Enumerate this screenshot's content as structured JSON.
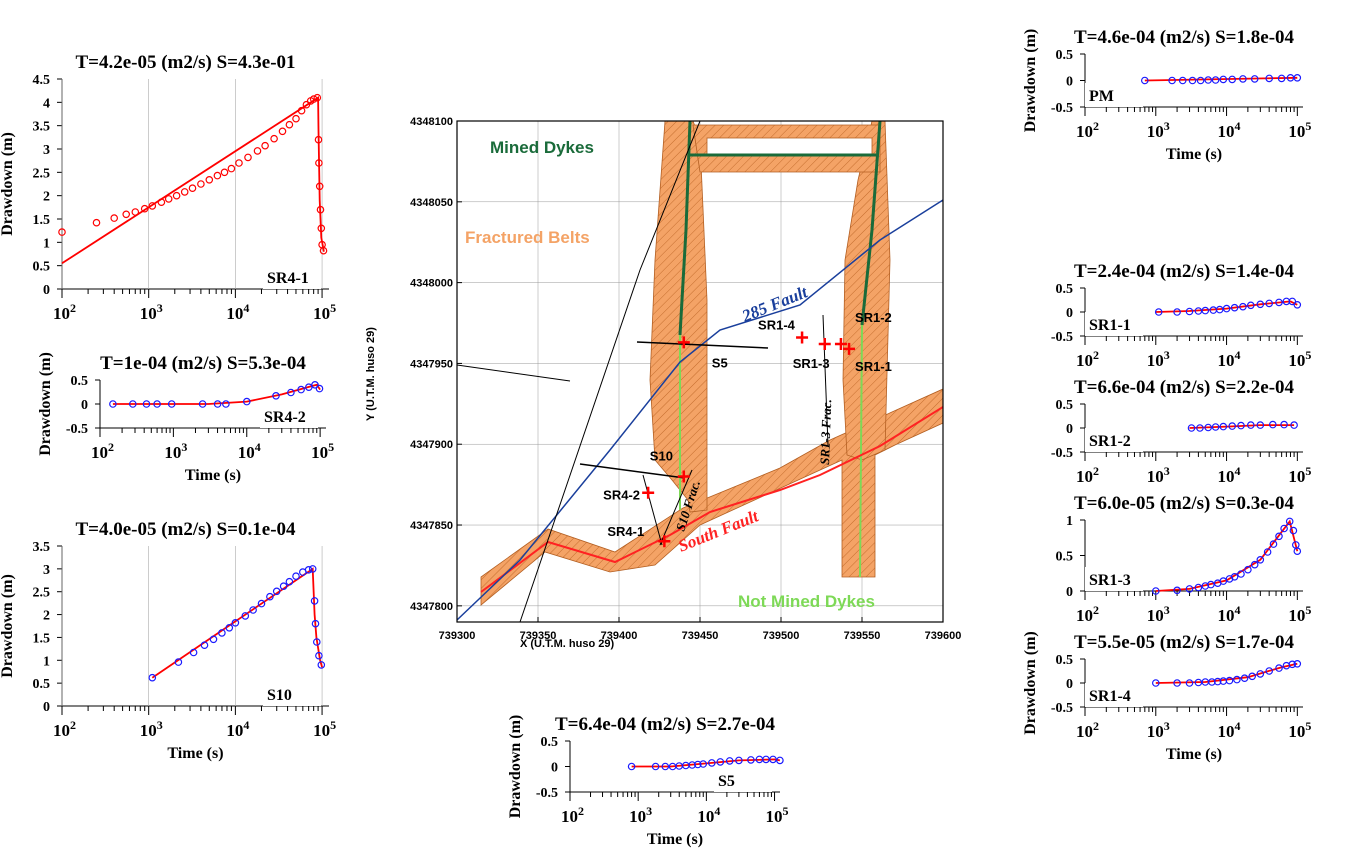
{
  "map": {
    "xlabel": "X (U.T.M. huso 29)",
    "ylabel": "Y (U.T.M. huso 29)",
    "xlim": [
      739300,
      739600
    ],
    "ylim": [
      4347790,
      4348100
    ],
    "xticks": [
      "739300",
      "739350",
      "739400",
      "739450",
      "739500",
      "739550",
      "739600"
    ],
    "yticks": [
      "4347800",
      "4347850",
      "4347900",
      "4347950",
      "4348000",
      "4348050",
      "4348100"
    ],
    "labels": {
      "mined": "Mined Dykes",
      "fractured": "Fractured Belts",
      "fault285": "285 Fault",
      "south": "South Fault",
      "notmined": "Not Mined Dykes",
      "s10frac": "S10 Frac.",
      "sr13frac": "SR1-3 Frac."
    },
    "colors": {
      "belt": "#f4a366",
      "mined": "#1a6b3a",
      "notmined": "#7ed957",
      "fault285": "#1a3f9c",
      "south": "#ff2222",
      "well": "#ff0000"
    },
    "wells": [
      {
        "name": "S5",
        "x": 739440,
        "y": 4347963
      },
      {
        "name": "SR1-4",
        "x": 739513,
        "y": 4347966
      },
      {
        "name": "SR1-3",
        "x": 739527,
        "y": 4347962
      },
      {
        "name": "SR1-2",
        "x": 739537,
        "y": 4347962
      },
      {
        "name": "SR1-1",
        "x": 739542,
        "y": 4347959
      },
      {
        "name": "S10",
        "x": 739440,
        "y": 4347880
      },
      {
        "name": "SR4-2",
        "x": 739418,
        "y": 4347870
      },
      {
        "name": "SR4-1",
        "x": 739428,
        "y": 4347840
      }
    ]
  },
  "chart_data": [
    {
      "type": "line",
      "well": "SR4-1",
      "title": "T=4.2e-05 (m2/s)  S=4.3e-01",
      "ylabel": "Drawdown (m)",
      "ylim": [
        0,
        4.5
      ],
      "yticks": [
        "0",
        "0.5",
        "1",
        "1.5",
        "2",
        "2.5",
        "3",
        "3.5",
        "4",
        "4.5"
      ],
      "observed_style": "red-circles",
      "observed": [
        [
          100,
          1.22
        ],
        [
          250,
          1.42
        ],
        [
          400,
          1.52
        ],
        [
          550,
          1.6
        ],
        [
          700,
          1.65
        ],
        [
          900,
          1.72
        ],
        [
          1100,
          1.78
        ],
        [
          1400,
          1.86
        ],
        [
          1700,
          1.93
        ],
        [
          2100,
          2.0
        ],
        [
          2600,
          2.08
        ],
        [
          3200,
          2.16
        ],
        [
          4000,
          2.25
        ],
        [
          5000,
          2.34
        ],
        [
          6200,
          2.43
        ],
        [
          7500,
          2.5
        ],
        [
          9000,
          2.58
        ],
        [
          11000,
          2.7
        ],
        [
          14000,
          2.82
        ],
        [
          18000,
          2.96
        ],
        [
          22000,
          3.07
        ],
        [
          28000,
          3.22
        ],
        [
          35000,
          3.38
        ],
        [
          42000,
          3.52
        ],
        [
          50000,
          3.65
        ],
        [
          58000,
          3.82
        ],
        [
          66000,
          3.95
        ],
        [
          74000,
          4.03
        ],
        [
          80000,
          4.07
        ],
        [
          88000,
          4.1
        ],
        [
          91000,
          3.2
        ],
        [
          92000,
          2.7
        ],
        [
          94000,
          2.2
        ],
        [
          96000,
          1.7
        ],
        [
          98000,
          1.3
        ],
        [
          100000,
          0.95
        ],
        [
          104000,
          0.82
        ]
      ],
      "model": [
        [
          100,
          0.55
        ],
        [
          90000,
          4.1
        ],
        [
          91000,
          3.4
        ],
        [
          94000,
          1.9
        ],
        [
          98000,
          1.1
        ],
        [
          105000,
          0.8
        ]
      ]
    },
    {
      "type": "line",
      "well": "SR4-2",
      "title": "T=1e-04 (m2/s)  S=5.3e-04",
      "ylabel": "Drawdown (m)",
      "xlabel": "Time (s)",
      "ylim": [
        -0.5,
        0.5
      ],
      "yticks": [
        "0.5",
        "0",
        "-0.5"
      ],
      "observed": [
        [
          150,
          0
        ],
        [
          280,
          0
        ],
        [
          430,
          0
        ],
        [
          600,
          0
        ],
        [
          950,
          0
        ],
        [
          2500,
          0
        ],
        [
          4000,
          0
        ],
        [
          5200,
          0
        ],
        [
          10000,
          0.05
        ],
        [
          25000,
          0.17
        ],
        [
          40000,
          0.24
        ],
        [
          55000,
          0.3
        ],
        [
          70000,
          0.35
        ],
        [
          85000,
          0.4
        ],
        [
          98000,
          0.32
        ]
      ],
      "model": [
        [
          150,
          0
        ],
        [
          1000,
          0
        ],
        [
          3000,
          0
        ],
        [
          10000,
          0.05
        ],
        [
          30000,
          0.2
        ],
        [
          80000,
          0.38
        ],
        [
          90000,
          0.4
        ],
        [
          100000,
          0.3
        ]
      ]
    },
    {
      "type": "line",
      "well": "S10",
      "title": "T=4.0e-05 (m2/s)  S=0.1e-04",
      "ylabel": "Drawdown (m)",
      "xlabel": "Time (s)",
      "ylim": [
        0,
        3.5
      ],
      "yticks": [
        "0",
        "0.5",
        "1",
        "1.5",
        "2",
        "2.5",
        "3",
        "3.5"
      ],
      "observed": [
        [
          1100,
          0.62
        ],
        [
          2200,
          0.96
        ],
        [
          3300,
          1.17
        ],
        [
          4400,
          1.33
        ],
        [
          5600,
          1.46
        ],
        [
          7000,
          1.6
        ],
        [
          8500,
          1.71
        ],
        [
          10000,
          1.82
        ],
        [
          13000,
          1.97
        ],
        [
          16000,
          2.1
        ],
        [
          20000,
          2.24
        ],
        [
          25000,
          2.39
        ],
        [
          30000,
          2.51
        ],
        [
          36000,
          2.62
        ],
        [
          42000,
          2.72
        ],
        [
          50000,
          2.84
        ],
        [
          60000,
          2.93
        ],
        [
          70000,
          2.98
        ],
        [
          78000,
          3.0
        ],
        [
          82000,
          2.3
        ],
        [
          84000,
          1.8
        ],
        [
          87000,
          1.4
        ],
        [
          92000,
          1.1
        ],
        [
          98000,
          0.9
        ]
      ],
      "model": [
        [
          1100,
          0.62
        ],
        [
          78000,
          3.0
        ],
        [
          82000,
          2.0
        ],
        [
          86000,
          1.5
        ],
        [
          95000,
          1.0
        ],
        [
          100000,
          0.85
        ]
      ]
    },
    {
      "type": "line",
      "well": "S5",
      "title": "T=6.4e-04 (m2/s)  S=2.7e-04",
      "ylabel": "Drawdown (m)",
      "xlabel": "Time (s)",
      "ylim": [
        -0.5,
        0.5
      ],
      "yticks": [
        "0.5",
        "0",
        "-0.5"
      ],
      "observed": [
        [
          800,
          0
        ],
        [
          1800,
          0
        ],
        [
          2500,
          0
        ],
        [
          3200,
          0
        ],
        [
          4000,
          0.01
        ],
        [
          5000,
          0.02
        ],
        [
          6200,
          0.03
        ],
        [
          7500,
          0.04
        ],
        [
          9000,
          0.05
        ],
        [
          12000,
          0.07
        ],
        [
          16000,
          0.09
        ],
        [
          22000,
          0.11
        ],
        [
          30000,
          0.12
        ],
        [
          45000,
          0.13
        ],
        [
          60000,
          0.14
        ],
        [
          75000,
          0.14
        ],
        [
          95000,
          0.14
        ],
        [
          120000,
          0.12
        ]
      ],
      "model": [
        [
          800,
          0
        ],
        [
          3000,
          0
        ],
        [
          10000,
          0.06
        ],
        [
          30000,
          0.12
        ],
        [
          100000,
          0.14
        ],
        [
          120000,
          0.12
        ]
      ]
    },
    {
      "type": "line",
      "well": "PM",
      "title": "T=4.6e-04 (m2/s)  S=1.8e-04",
      "ylabel": "Drawdown (m)",
      "xlabel": "Time (s)",
      "ylim": [
        -0.5,
        0.5
      ],
      "yticks": [
        "0.5",
        "0",
        "-0.5"
      ],
      "observed": [
        [
          700,
          0
        ],
        [
          1700,
          0
        ],
        [
          2400,
          0
        ],
        [
          3300,
          0
        ],
        [
          4300,
          0
        ],
        [
          5500,
          0.01
        ],
        [
          7000,
          0.01
        ],
        [
          9000,
          0.02
        ],
        [
          12000,
          0.02
        ],
        [
          17000,
          0.03
        ],
        [
          25000,
          0.03
        ],
        [
          40000,
          0.04
        ],
        [
          60000,
          0.04
        ],
        [
          80000,
          0.05
        ],
        [
          100000,
          0.05
        ]
      ],
      "model": [
        [
          700,
          0
        ],
        [
          100000,
          0.05
        ]
      ]
    },
    {
      "type": "line",
      "well": "SR1-1",
      "title": "T=2.4e-04 (m2/s)  S=1.4e-04",
      "ylim": [
        -0.5,
        0.5
      ],
      "yticks": [
        "0.5",
        "0",
        "-0.5"
      ],
      "observed": [
        [
          1100,
          0
        ],
        [
          2000,
          0
        ],
        [
          3000,
          0.01
        ],
        [
          4000,
          0.02
        ],
        [
          5000,
          0.03
        ],
        [
          6500,
          0.04
        ],
        [
          8000,
          0.05
        ],
        [
          10000,
          0.07
        ],
        [
          13000,
          0.09
        ],
        [
          17000,
          0.11
        ],
        [
          22000,
          0.14
        ],
        [
          30000,
          0.16
        ],
        [
          40000,
          0.18
        ],
        [
          55000,
          0.2
        ],
        [
          70000,
          0.22
        ],
        [
          85000,
          0.22
        ],
        [
          100000,
          0.15
        ]
      ],
      "model": [
        [
          1000,
          0
        ],
        [
          3000,
          0.02
        ],
        [
          10000,
          0.07
        ],
        [
          30000,
          0.16
        ],
        [
          80000,
          0.22
        ],
        [
          100000,
          0.15
        ]
      ]
    },
    {
      "type": "line",
      "well": "SR1-2",
      "title": "T=6.6e-04 (m2/s)  S=2.2e-04",
      "ylim": [
        -0.5,
        0.5
      ],
      "yticks": [
        "0.5",
        "0",
        "-0.5"
      ],
      "observed": [
        [
          3200,
          0
        ],
        [
          4200,
          0
        ],
        [
          5500,
          0.01
        ],
        [
          7000,
          0.02
        ],
        [
          9000,
          0.03
        ],
        [
          12000,
          0.04
        ],
        [
          16000,
          0.05
        ],
        [
          22000,
          0.06
        ],
        [
          30000,
          0.06
        ],
        [
          45000,
          0.07
        ],
        [
          65000,
          0.07
        ],
        [
          90000,
          0.06
        ]
      ],
      "model": [
        [
          3000,
          0
        ],
        [
          10000,
          0.03
        ],
        [
          30000,
          0.06
        ],
        [
          90000,
          0.06
        ]
      ]
    },
    {
      "type": "line",
      "well": "SR1-3",
      "title": "T=6.0e-05 (m2/s)  S=0.3e-04",
      "ylim": [
        0,
        1
      ],
      "yticks": [
        "1",
        "0.5",
        "0"
      ],
      "observed": [
        [
          1000,
          0
        ],
        [
          2000,
          0.01
        ],
        [
          3000,
          0.03
        ],
        [
          4000,
          0.05
        ],
        [
          5000,
          0.07
        ],
        [
          6000,
          0.09
        ],
        [
          7500,
          0.11
        ],
        [
          9000,
          0.14
        ],
        [
          11000,
          0.17
        ],
        [
          13000,
          0.2
        ],
        [
          16000,
          0.24
        ],
        [
          20000,
          0.3
        ],
        [
          25000,
          0.37
        ],
        [
          30000,
          0.44
        ],
        [
          38000,
          0.55
        ],
        [
          46000,
          0.66
        ],
        [
          55000,
          0.77
        ],
        [
          65000,
          0.88
        ],
        [
          78000,
          0.98
        ],
        [
          88000,
          0.85
        ],
        [
          95000,
          0.65
        ],
        [
          100000,
          0.56
        ]
      ],
      "model": [
        [
          1000,
          0
        ],
        [
          3000,
          0.03
        ],
        [
          10000,
          0.15
        ],
        [
          30000,
          0.44
        ],
        [
          78000,
          0.98
        ],
        [
          100000,
          0.56
        ]
      ]
    },
    {
      "type": "line",
      "well": "SR1-4",
      "title": "T=5.5e-05 (m2/s)  S=1.7e-04",
      "ylabel": "Drawdown (m)",
      "xlabel": "Time (s)",
      "ylim": [
        -0.5,
        0.5
      ],
      "yticks": [
        "0.5",
        "0",
        "-0.5"
      ],
      "observed": [
        [
          1000,
          0
        ],
        [
          2000,
          0
        ],
        [
          3000,
          0
        ],
        [
          4000,
          0.01
        ],
        [
          5000,
          0.02
        ],
        [
          6200,
          0.02
        ],
        [
          7500,
          0.03
        ],
        [
          9000,
          0.04
        ],
        [
          11000,
          0.05
        ],
        [
          14000,
          0.07
        ],
        [
          18000,
          0.1
        ],
        [
          23000,
          0.14
        ],
        [
          30000,
          0.19
        ],
        [
          40000,
          0.25
        ],
        [
          55000,
          0.31
        ],
        [
          70000,
          0.36
        ],
        [
          85000,
          0.39
        ],
        [
          100000,
          0.4
        ]
      ],
      "model": [
        [
          1000,
          0
        ],
        [
          5000,
          0.02
        ],
        [
          20000,
          0.12
        ],
        [
          60000,
          0.33
        ],
        [
          100000,
          0.4
        ]
      ]
    }
  ]
}
